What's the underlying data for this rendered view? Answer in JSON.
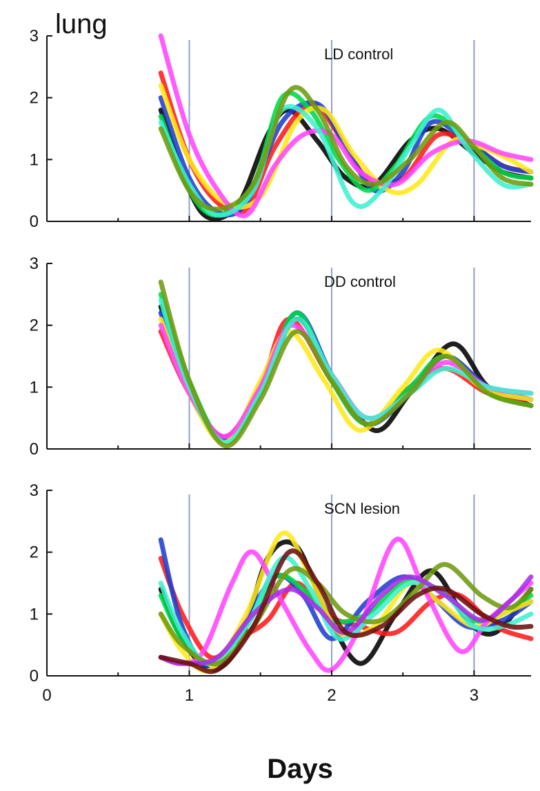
{
  "title": "lung",
  "chart_data": {
    "type": "line",
    "xlabel": "Days",
    "xlim": [
      0,
      3.4
    ],
    "xticks": [
      "0",
      "1",
      "2",
      "3"
    ],
    "ylim": [
      0,
      3
    ],
    "yticks": [
      "0",
      "1",
      "2",
      "3"
    ],
    "vlines": [
      1,
      2,
      3
    ],
    "grid": false,
    "series_colors": [
      "#000000",
      "#ff1a1a",
      "#1f3fcf",
      "#00d84a",
      "#ffe81a",
      "#ff44ff",
      "#3ff0d0",
      "#6f9a10",
      "#aa2ee6",
      "#6b1010"
    ],
    "panels": [
      {
        "label": "LD control",
        "series": [
          {
            "color": "#000000",
            "x": [
              0.8,
              1.0,
              1.15,
              1.35,
              1.55,
              1.7,
              1.9,
              2.1,
              2.3,
              2.55,
              2.75,
              3.0,
              3.2,
              3.4
            ],
            "y": [
              1.8,
              0.5,
              0.05,
              0.3,
              1.4,
              1.8,
              1.3,
              0.7,
              0.6,
              1.3,
              1.5,
              1.1,
              0.8,
              0.7
            ]
          },
          {
            "color": "#ff1a1a",
            "x": [
              0.8,
              1.0,
              1.2,
              1.4,
              1.6,
              1.85,
              2.05,
              2.25,
              2.5,
              2.75,
              3.0,
              3.2,
              3.4
            ],
            "y": [
              2.4,
              1.0,
              0.3,
              0.2,
              1.2,
              1.9,
              1.4,
              0.7,
              0.7,
              1.4,
              1.2,
              0.9,
              0.8
            ]
          },
          {
            "color": "#1f3fcf",
            "x": [
              0.8,
              1.0,
              1.2,
              1.4,
              1.65,
              1.9,
              2.1,
              2.3,
              2.5,
              2.7,
              2.95,
              3.2,
              3.4
            ],
            "y": [
              2.0,
              0.7,
              0.15,
              0.3,
              1.6,
              1.9,
              1.2,
              0.5,
              0.8,
              1.6,
              1.3,
              0.9,
              0.8
            ]
          },
          {
            "color": "#00d84a",
            "x": [
              0.8,
              1.0,
              1.2,
              1.45,
              1.65,
              1.85,
              2.05,
              2.25,
              2.45,
              2.7,
              2.95,
              3.2,
              3.4
            ],
            "y": [
              1.7,
              0.5,
              0.1,
              0.6,
              2.0,
              1.8,
              1.0,
              0.5,
              0.9,
              1.7,
              1.3,
              0.8,
              0.7
            ]
          },
          {
            "color": "#ffe81a",
            "x": [
              0.8,
              1.0,
              1.25,
              1.5,
              1.75,
              1.95,
              2.15,
              2.4,
              2.6,
              2.85,
              3.05,
              3.25,
              3.4
            ],
            "y": [
              2.2,
              1.0,
              0.3,
              0.4,
              1.6,
              1.8,
              1.1,
              0.5,
              0.6,
              1.3,
              1.2,
              1.0,
              0.8
            ]
          },
          {
            "color": "#ff44ff",
            "x": [
              0.8,
              1.0,
              1.2,
              1.4,
              1.6,
              1.8,
              2.0,
              2.2,
              2.45,
              2.7,
              2.95,
              3.2,
              3.4
            ],
            "y": [
              3.0,
              1.4,
              0.5,
              0.1,
              0.9,
              1.4,
              1.4,
              0.8,
              0.6,
              1.1,
              1.3,
              1.1,
              1.0
            ]
          },
          {
            "color": "#3ff0d0",
            "x": [
              0.8,
              1.0,
              1.2,
              1.45,
              1.65,
              1.9,
              2.15,
              2.35,
              2.55,
              2.75,
              2.95,
              3.2,
              3.4
            ],
            "y": [
              1.6,
              0.6,
              0.1,
              0.5,
              1.8,
              1.5,
              0.3,
              0.5,
              1.2,
              1.8,
              1.2,
              0.6,
              0.6
            ]
          },
          {
            "color": "#6f9a10",
            "x": [
              0.8,
              1.0,
              1.2,
              1.45,
              1.7,
              1.9,
              2.1,
              2.3,
              2.55,
              2.8,
              3.0,
              3.2,
              3.4
            ],
            "y": [
              1.5,
              0.5,
              0.2,
              0.6,
              2.1,
              1.8,
              0.9,
              0.6,
              1.0,
              1.6,
              1.2,
              0.7,
              0.6
            ]
          }
        ]
      },
      {
        "label": "DD control",
        "series": [
          {
            "color": "#000000",
            "x": [
              0.8,
              1.0,
              1.25,
              1.5,
              1.75,
              2.0,
              2.3,
              2.55,
              2.85,
              3.1,
              3.4
            ],
            "y": [
              2.3,
              1.0,
              0.1,
              0.9,
              2.1,
              1.2,
              0.3,
              0.9,
              1.7,
              1.0,
              0.7
            ]
          },
          {
            "color": "#ff1a1a",
            "x": [
              0.8,
              1.0,
              1.25,
              1.5,
              1.7,
              2.0,
              2.25,
              2.55,
              2.8,
              3.1,
              3.4
            ],
            "y": [
              1.9,
              0.9,
              0.2,
              1.0,
              2.1,
              1.1,
              0.4,
              1.0,
              1.3,
              0.9,
              0.8
            ]
          },
          {
            "color": "#1f3fcf",
            "x": [
              0.8,
              1.0,
              1.25,
              1.5,
              1.75,
              2.0,
              2.25,
              2.55,
              2.8,
              3.1,
              3.4
            ],
            "y": [
              2.2,
              1.0,
              0.15,
              0.9,
              2.2,
              1.2,
              0.4,
              0.9,
              1.5,
              1.0,
              0.8
            ]
          },
          {
            "color": "#00d84a",
            "x": [
              0.8,
              1.0,
              1.25,
              1.5,
              1.75,
              2.0,
              2.25,
              2.55,
              2.8,
              3.1,
              3.4
            ],
            "y": [
              2.5,
              1.1,
              0.1,
              0.9,
              2.2,
              1.1,
              0.4,
              1.0,
              1.5,
              0.9,
              0.7
            ]
          },
          {
            "color": "#ffe81a",
            "x": [
              0.8,
              1.0,
              1.25,
              1.5,
              1.7,
              1.95,
              2.2,
              2.5,
              2.75,
              3.05,
              3.4
            ],
            "y": [
              2.1,
              0.9,
              0.1,
              1.1,
              1.9,
              1.1,
              0.3,
              1.0,
              1.6,
              1.0,
              0.8
            ]
          },
          {
            "color": "#ff44ff",
            "x": [
              0.8,
              1.0,
              1.25,
              1.5,
              1.72,
              2.0,
              2.25,
              2.55,
              2.8,
              3.1,
              3.4
            ],
            "y": [
              2.0,
              0.9,
              0.2,
              1.0,
              2.0,
              1.2,
              0.5,
              0.9,
              1.4,
              1.0,
              0.9
            ]
          },
          {
            "color": "#3ff0d0",
            "x": [
              0.8,
              1.0,
              1.25,
              1.5,
              1.75,
              2.0,
              2.25,
              2.55,
              2.8,
              3.1,
              3.4
            ],
            "y": [
              2.4,
              1.0,
              0.1,
              0.9,
              2.1,
              1.2,
              0.5,
              0.9,
              1.3,
              1.0,
              0.9
            ]
          },
          {
            "color": "#6f9a10",
            "x": [
              0.8,
              1.0,
              1.25,
              1.5,
              1.75,
              2.0,
              2.25,
              2.55,
              2.8,
              3.1,
              3.4
            ],
            "y": [
              2.7,
              1.1,
              0.05,
              0.8,
              1.9,
              1.1,
              0.4,
              0.9,
              1.5,
              0.9,
              0.7
            ]
          }
        ]
      },
      {
        "label": "SCN lesion",
        "series": [
          {
            "color": "#000000",
            "x": [
              0.8,
              0.95,
              1.15,
              1.35,
              1.55,
              1.75,
              1.95,
              2.2,
              2.45,
              2.7,
              2.95,
              3.15,
              3.4
            ],
            "y": [
              1.4,
              0.6,
              0.1,
              0.5,
              1.9,
              2.1,
              1.1,
              0.2,
              1.0,
              1.7,
              0.9,
              0.7,
              1.4
            ]
          },
          {
            "color": "#ff1a1a",
            "x": [
              0.8,
              0.95,
              1.15,
              1.35,
              1.55,
              1.75,
              1.95,
              2.2,
              2.45,
              2.7,
              2.9,
              3.15,
              3.4
            ],
            "y": [
              1.9,
              1.0,
              0.3,
              0.6,
              0.9,
              1.5,
              1.0,
              0.8,
              0.7,
              1.2,
              1.3,
              0.8,
              0.6
            ]
          },
          {
            "color": "#1f3fcf",
            "x": [
              0.8,
              0.95,
              1.15,
              1.35,
              1.6,
              1.8,
              2.0,
              2.25,
              2.5,
              2.7,
              2.95,
              3.2,
              3.4
            ],
            "y": [
              2.2,
              0.8,
              0.1,
              0.7,
              1.6,
              1.3,
              0.6,
              1.2,
              1.6,
              1.3,
              0.8,
              0.9,
              1.2
            ]
          },
          {
            "color": "#00d84a",
            "x": [
              0.8,
              0.95,
              1.15,
              1.4,
              1.6,
              1.8,
              2.0,
              2.25,
              2.5,
              2.75,
              3.0,
              3.2,
              3.4
            ],
            "y": [
              1.3,
              0.6,
              0.2,
              0.8,
              1.6,
              1.4,
              0.9,
              1.0,
              1.5,
              1.4,
              0.9,
              1.0,
              1.3
            ]
          },
          {
            "color": "#ffe81a",
            "x": [
              0.8,
              0.95,
              1.15,
              1.4,
              1.65,
              1.85,
              2.05,
              2.3,
              2.55,
              2.75,
              3.0,
              3.2,
              3.4
            ],
            "y": [
              1.0,
              0.4,
              0.1,
              1.0,
              2.3,
              1.6,
              0.7,
              0.8,
              1.5,
              1.2,
              0.8,
              1.0,
              1.2
            ]
          },
          {
            "color": "#ff44ff",
            "x": [
              0.8,
              0.95,
              1.1,
              1.3,
              1.45,
              1.65,
              1.85,
              2.0,
              2.2,
              2.45,
              2.65,
              2.9,
              3.1,
              3.4
            ],
            "y": [
              0.3,
              0.2,
              0.4,
              1.5,
              2.0,
              1.2,
              0.4,
              0.1,
              0.8,
              2.2,
              1.4,
              0.4,
              0.9,
              1.5
            ]
          },
          {
            "color": "#3ff0d0",
            "x": [
              0.8,
              0.95,
              1.15,
              1.4,
              1.65,
              1.85,
              2.05,
              2.3,
              2.55,
              2.8,
              3.0,
              3.2,
              3.4
            ],
            "y": [
              1.5,
              0.7,
              0.2,
              0.8,
              1.9,
              1.4,
              0.6,
              1.0,
              1.5,
              1.3,
              0.8,
              0.8,
              1.0
            ]
          },
          {
            "color": "#6f9a10",
            "x": [
              0.8,
              0.95,
              1.2,
              1.45,
              1.7,
              1.9,
              2.1,
              2.35,
              2.6,
              2.8,
              3.05,
              3.25,
              3.4
            ],
            "y": [
              1.0,
              0.5,
              0.2,
              0.8,
              1.7,
              1.5,
              1.0,
              0.9,
              1.4,
              1.8,
              1.3,
              1.1,
              1.4
            ]
          },
          {
            "color": "#aa2ee6",
            "x": [
              0.8,
              0.95,
              1.2,
              1.45,
              1.7,
              1.9,
              2.1,
              2.35,
              2.55,
              2.8,
              3.05,
              3.25,
              3.4
            ],
            "y": [
              0.3,
              0.2,
              0.3,
              1.0,
              1.4,
              1.1,
              0.7,
              1.3,
              1.6,
              1.3,
              0.9,
              1.2,
              1.6
            ]
          },
          {
            "color": "#6b1010",
            "x": [
              0.8,
              1.0,
              1.2,
              1.45,
              1.7,
              1.9,
              2.1,
              2.35,
              2.6,
              2.8,
              3.05,
              3.25,
              3.4
            ],
            "y": [
              0.3,
              0.2,
              0.1,
              0.8,
              2.0,
              1.5,
              0.7,
              0.8,
              1.3,
              1.4,
              1.0,
              0.8,
              0.8
            ]
          }
        ]
      }
    ]
  }
}
